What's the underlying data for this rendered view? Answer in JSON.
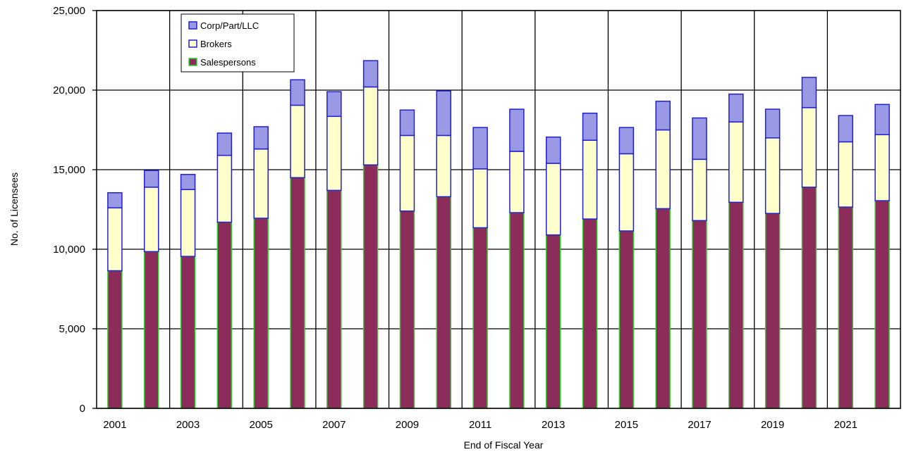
{
  "chart_data": {
    "type": "bar",
    "stacked": true,
    "categories": [
      "2001",
      "2002",
      "2003",
      "2004",
      "2005",
      "2006",
      "2007",
      "2008",
      "2009",
      "2010",
      "2011",
      "2012",
      "2013",
      "2014",
      "2015",
      "2016",
      "2017",
      "2018",
      "2019",
      "2020",
      "2021",
      "2022"
    ],
    "x_tick_labels": [
      "2001",
      "2003",
      "2005",
      "2007",
      "2009",
      "2011",
      "2013",
      "2015",
      "2017",
      "2019",
      "2021"
    ],
    "series": [
      {
        "name": "Salespersons",
        "color": "#8b2c5a",
        "edge": "#33cc33",
        "values": [
          8650,
          9850,
          9550,
          11700,
          11950,
          14500,
          13700,
          15300,
          12400,
          13300,
          11350,
          12300,
          10900,
          11900,
          11150,
          12550,
          11800,
          12950,
          12250,
          13900,
          12650,
          13050
        ]
      },
      {
        "name": "Brokers",
        "color": "#ffffcc",
        "edge": "#2020cc",
        "values": [
          3950,
          4050,
          4200,
          4200,
          4350,
          4550,
          4650,
          4900,
          4750,
          3850,
          3700,
          3850,
          4500,
          4950,
          4850,
          4950,
          3850,
          5050,
          4750,
          5000,
          4100,
          4150
        ]
      },
      {
        "name": "Corp/Part/LLC",
        "color": "#9999e6",
        "edge": "#2020cc",
        "values": [
          950,
          1050,
          950,
          1400,
          1400,
          1600,
          1550,
          1650,
          1600,
          2800,
          2600,
          2650,
          1650,
          1700,
          1650,
          1800,
          2600,
          1750,
          1800,
          1900,
          1650,
          1900
        ]
      }
    ],
    "legend_order": [
      "Corp/Part/LLC",
      "Brokers",
      "Salespersons"
    ],
    "legend_position": "top-left",
    "xlabel": "End of Fiscal Year",
    "ylabel": "No. of Licensees",
    "ylim": [
      0,
      25000
    ],
    "y_ticks": [
      0,
      5000,
      10000,
      15000,
      20000,
      25000
    ],
    "y_tick_labels": [
      "0",
      "5,000",
      "10,000",
      "15,000",
      "20,000",
      "25,000"
    ],
    "grid": true
  }
}
